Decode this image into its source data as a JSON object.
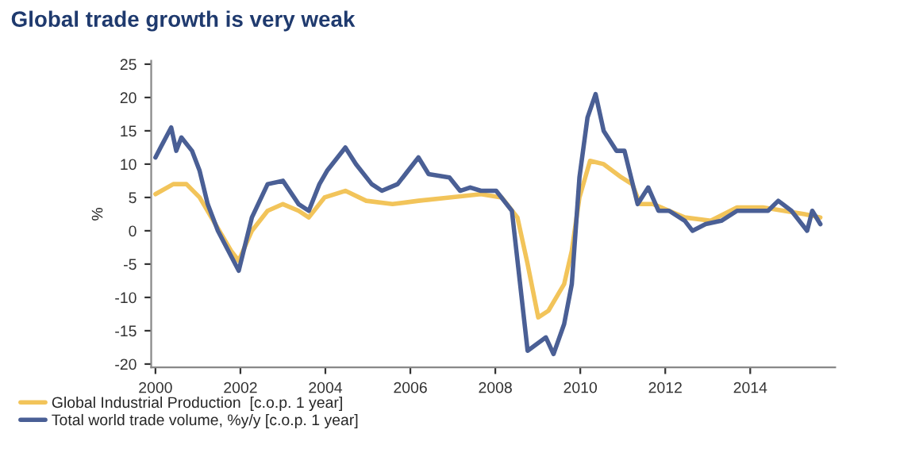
{
  "chart_data": {
    "type": "line",
    "title": "Global trade growth is very weak",
    "ylabel": "%",
    "xlim": [
      1999.9,
      2016.0
    ],
    "xticks": [
      2000,
      2002,
      2004,
      2006,
      2008,
      2010,
      2012,
      2014
    ],
    "ylim": [
      -20.5,
      25.5
    ],
    "yticks": [
      -20,
      -15,
      -10,
      -5,
      0,
      5,
      10,
      15,
      20,
      25
    ],
    "grid": false,
    "legend": "bottom",
    "marker": "none",
    "line_style": "solid",
    "series": [
      {
        "name": "Global Industrial Production  [c.o.p. 1 year]",
        "color": "#f2c45a",
        "x": [
          2000.0,
          2000.42,
          2000.73,
          2001.04,
          2001.41,
          2001.78,
          2001.96,
          2002.27,
          2002.64,
          2003.0,
          2003.37,
          2003.61,
          2003.98,
          2004.47,
          2004.96,
          2005.58,
          2006.19,
          2006.92,
          2007.66,
          2008.15,
          2008.52,
          2008.76,
          2009.01,
          2009.25,
          2009.62,
          2009.8,
          2009.98,
          2010.23,
          2010.55,
          2010.97,
          2011.22,
          2011.41,
          2011.72,
          2012.09,
          2012.46,
          2013.07,
          2013.69,
          2014.3,
          2014.79,
          2015.28,
          2015.65
        ],
        "values": [
          5.5,
          7,
          7,
          5,
          1,
          -3,
          -4.5,
          0,
          3,
          4,
          3,
          2,
          5,
          6,
          4.5,
          4,
          4.5,
          5,
          5.5,
          5,
          2,
          -5,
          -13,
          -12,
          -8,
          -3,
          5,
          10.5,
          10,
          8,
          7,
          4,
          4,
          3,
          2,
          1.5,
          3.5,
          3.5,
          3,
          2.5,
          2
        ]
      },
      {
        "name": "Total world trade volume, %y/y [c.o.p. 1 year]",
        "color": "#4a5f95",
        "x": [
          2000.0,
          2000.12,
          2000.37,
          2000.49,
          2000.61,
          2000.86,
          2001.04,
          2001.23,
          2001.47,
          2001.96,
          2002.27,
          2002.64,
          2003.0,
          2003.37,
          2003.61,
          2003.86,
          2004.04,
          2004.47,
          2004.72,
          2005.09,
          2005.33,
          2005.7,
          2006.19,
          2006.43,
          2006.92,
          2007.17,
          2007.41,
          2007.66,
          2008.02,
          2008.39,
          2008.76,
          2009.19,
          2009.37,
          2009.62,
          2009.8,
          2009.98,
          2010.17,
          2010.36,
          2010.55,
          2010.85,
          2011.04,
          2011.35,
          2011.6,
          2011.84,
          2012.09,
          2012.46,
          2012.64,
          2012.95,
          2013.32,
          2013.69,
          2014.05,
          2014.42,
          2014.66,
          2014.97,
          2015.34,
          2015.46,
          2015.65
        ],
        "values": [
          11,
          12.5,
          15.5,
          12,
          14,
          12,
          9,
          4,
          0,
          -6,
          2,
          7,
          7.5,
          4,
          3,
          7,
          9,
          12.5,
          10,
          7,
          6,
          7,
          11,
          8.5,
          8,
          6,
          6.5,
          6,
          6,
          3,
          -18,
          -16,
          -18.5,
          -14,
          -8,
          8,
          17,
          20.5,
          15,
          12,
          12,
          4,
          6.5,
          3,
          3,
          1.5,
          0,
          1,
          1.5,
          3,
          3,
          3,
          4.5,
          3,
          0,
          3,
          1
        ]
      }
    ]
  }
}
